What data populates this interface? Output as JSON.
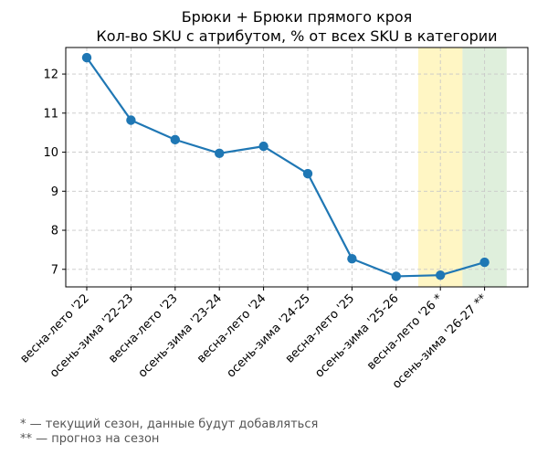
{
  "chart_data": {
    "type": "line",
    "title": "Брюки + Брюки прямого кроя",
    "subtitle": "Кол-во SKU с атрибутом, % от всех SKU в категории",
    "xlabel": "",
    "ylabel": "",
    "categories": [
      "весна-лето '22",
      "осень-зима '22-23",
      "весна-лето '23",
      "осень-зима '23-24",
      "весна-лето '24",
      "осень-зима '24-25",
      "весна-лето '25",
      "осень-зима '25-26",
      "весна-лето '26 *",
      "осень-зима '26-27 **"
    ],
    "series": [
      {
        "values": [
          12.42,
          10.82,
          10.32,
          9.97,
          10.15,
          9.45,
          7.27,
          6.82,
          6.85,
          7.18
        ],
        "color": "#1f77b4"
      }
    ],
    "yticks": [
      7,
      8,
      9,
      10,
      11,
      12
    ],
    "ylim": [
      6.55,
      12.68
    ],
    "grid": true,
    "highlight_bands": [
      {
        "category_index": 8,
        "color": "#fff3b0"
      },
      {
        "category_index": 9,
        "color": "#d4ead0"
      }
    ]
  },
  "footnotes": [
    "* — текущий сезон, данные будут добавляться",
    "** — прогноз на сезон"
  ]
}
